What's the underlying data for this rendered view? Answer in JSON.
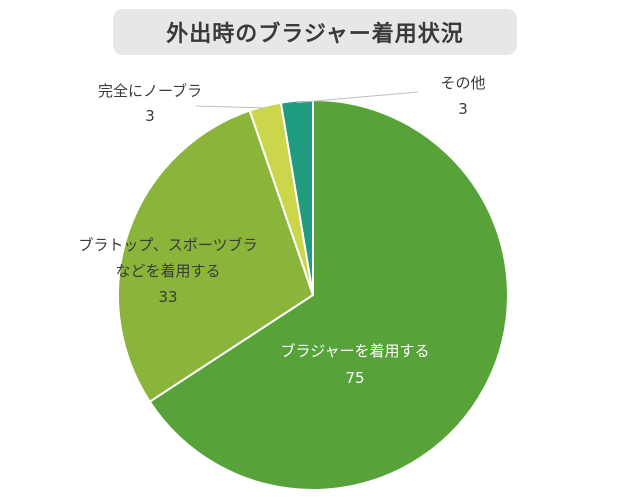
{
  "chart_data": {
    "type": "pie",
    "title": "外出時のブラジャー着用状況",
    "slices": [
      {
        "label": "ブラジャーを着用する",
        "value": 75,
        "color": "#57a33a"
      },
      {
        "label": "ブラトップ、スポーツブラ",
        "label2": "などを着用する",
        "value": 33,
        "color": "#8ab53a"
      },
      {
        "label": "完全にノーブラ",
        "value": 3,
        "color": "#cbd64a"
      },
      {
        "label": "その他",
        "value": 3,
        "color": "#1f9c7f"
      }
    ],
    "legend": "none"
  }
}
